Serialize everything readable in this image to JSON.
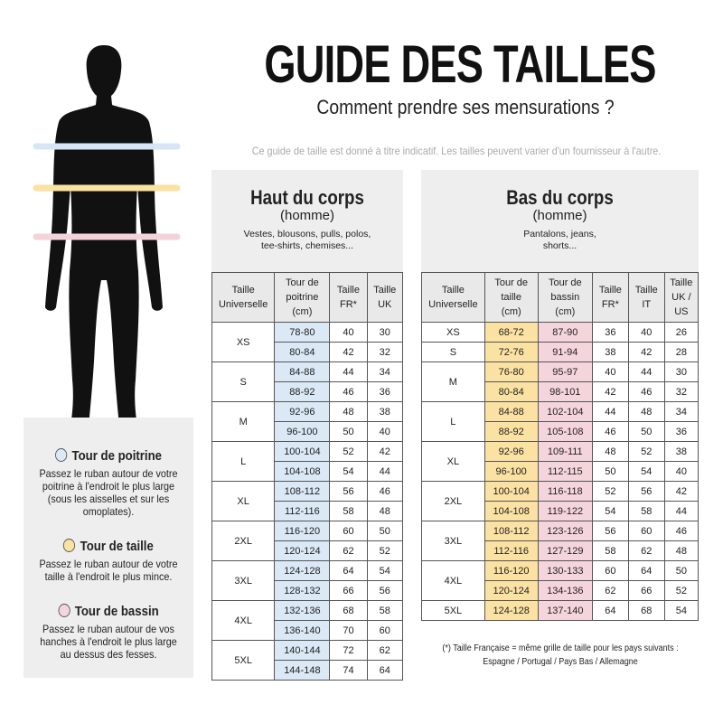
{
  "header": {
    "title": "GUIDE DES TAILLES",
    "subtitle": "Comment prendre ses mensurations ?",
    "note": "Ce guide de taille est donné à titre indicatif. Les tailles peuvent varier d'un fournisseur à l'autre."
  },
  "measures": [
    {
      "title": "Tour de poitrine",
      "text": "Passez le ruban autour de votre poitrine à l'endroit le plus large (sous les aisselles et sur les omoplates)."
    },
    {
      "title": "Tour de taille",
      "text": "Passez le ruban autour de votre taille à l'endroit le plus mince."
    },
    {
      "title": "Tour de bassin",
      "text": "Passez le ruban autour de vos hanches à l'endroit le plus large au dessus des fesses."
    }
  ],
  "top": {
    "title": "Haut du corps",
    "subtitle": "(homme)",
    "description": "Vestes, blousons, pulls, polos,\ntee-shirts, chemises...",
    "headers": [
      "Taille\nUniverselle",
      "Tour de\npoitrine\n(cm)",
      "Taille\nFR*",
      "Taille\nUK"
    ],
    "groups": [
      {
        "size": "XS",
        "rows": [
          [
            "78-80",
            40,
            30
          ],
          [
            "80-84",
            42,
            32
          ]
        ]
      },
      {
        "size": "S",
        "rows": [
          [
            "84-88",
            44,
            34
          ],
          [
            "88-92",
            46,
            36
          ]
        ]
      },
      {
        "size": "M",
        "rows": [
          [
            "92-96",
            48,
            38
          ],
          [
            "96-100",
            50,
            40
          ]
        ]
      },
      {
        "size": "L",
        "rows": [
          [
            "100-104",
            52,
            42
          ],
          [
            "104-108",
            54,
            44
          ]
        ]
      },
      {
        "size": "XL",
        "rows": [
          [
            "108-112",
            56,
            46
          ],
          [
            "112-116",
            58,
            48
          ]
        ]
      },
      {
        "size": "2XL",
        "rows": [
          [
            "116-120",
            60,
            50
          ],
          [
            "120-124",
            62,
            52
          ]
        ]
      },
      {
        "size": "3XL",
        "rows": [
          [
            "124-128",
            64,
            54
          ],
          [
            "128-132",
            66,
            56
          ]
        ]
      },
      {
        "size": "4XL",
        "rows": [
          [
            "132-136",
            68,
            58
          ],
          [
            "136-140",
            70,
            60
          ]
        ]
      },
      {
        "size": "5XL",
        "rows": [
          [
            "140-144",
            72,
            62
          ],
          [
            "144-148",
            74,
            64
          ]
        ]
      }
    ]
  },
  "bottom": {
    "title": "Bas du corps",
    "subtitle": "(homme)",
    "description": "Pantalons, jeans,\nshorts...",
    "headers": [
      "Taille\nUniverselle",
      "Tour de\ntaille\n(cm)",
      "Tour de\nbassin\n(cm)",
      "Taille\nFR*",
      "Taille\nIT",
      "Taille\nUK /\nUS"
    ],
    "groups": [
      {
        "size": "XS",
        "rows": [
          [
            "68-72",
            "87-90",
            36,
            40,
            26
          ]
        ]
      },
      {
        "size": "S",
        "rows": [
          [
            "72-76",
            "91-94",
            38,
            42,
            28
          ]
        ]
      },
      {
        "size": "M",
        "rows": [
          [
            "76-80",
            "95-97",
            40,
            44,
            30
          ],
          [
            "80-84",
            "98-101",
            42,
            46,
            32
          ]
        ]
      },
      {
        "size": "L",
        "rows": [
          [
            "84-88",
            "102-104",
            44,
            48,
            34
          ],
          [
            "88-92",
            "105-108",
            46,
            50,
            36
          ]
        ]
      },
      {
        "size": "XL",
        "rows": [
          [
            "92-96",
            "109-111",
            48,
            52,
            38
          ],
          [
            "96-100",
            "112-115",
            50,
            54,
            40
          ]
        ]
      },
      {
        "size": "2XL",
        "rows": [
          [
            "100-104",
            "116-118",
            52,
            56,
            42
          ],
          [
            "104-108",
            "119-122",
            54,
            58,
            44
          ]
        ]
      },
      {
        "size": "3XL",
        "rows": [
          [
            "108-112",
            "123-126",
            56,
            60,
            46
          ],
          [
            "112-116",
            "127-129",
            58,
            62,
            48
          ]
        ]
      },
      {
        "size": "4XL",
        "rows": [
          [
            "116-120",
            "130-133",
            60,
            64,
            50
          ],
          [
            "120-124",
            "134-136",
            62,
            66,
            52
          ]
        ]
      },
      {
        "size": "5XL",
        "rows": [
          [
            "124-128",
            "137-140",
            64,
            68,
            54
          ]
        ]
      }
    ]
  },
  "footnote": {
    "line1": "(*) Taille Française = même grille de taille pour les pays suivants :",
    "line2": "Espagne / Portugal / Pays Bas / Allemagne"
  }
}
